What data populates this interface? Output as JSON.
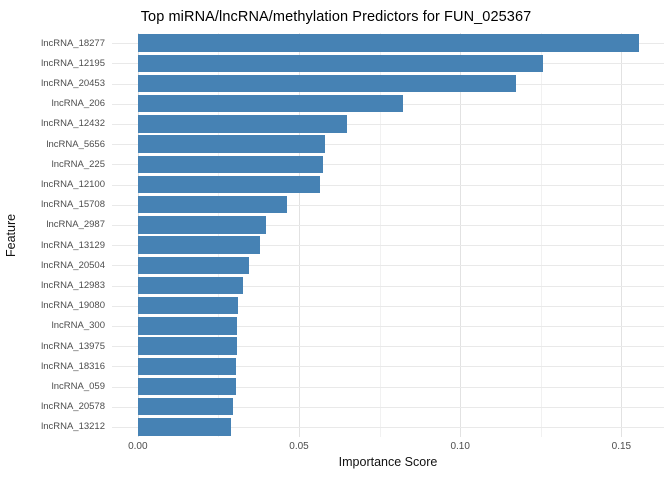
{
  "chart_data": {
    "type": "bar",
    "orientation": "horizontal",
    "title": "Top miRNA/lncRNA/methylation Predictors for FUN_025367",
    "xlabel": "Importance Score",
    "ylabel": "Feature",
    "categories": [
      "lncRNA_18277",
      "lncRNA_12195",
      "lncRNA_20453",
      "lncRNA_206",
      "lncRNA_12432",
      "lncRNA_5656",
      "lncRNA_225",
      "lncRNA_12100",
      "lncRNA_15708",
      "lncRNA_2987",
      "lncRNA_13129",
      "lncRNA_20504",
      "lncRNA_12983",
      "lncRNA_19080",
      "lncRNA_300",
      "lncRNA_13975",
      "lncRNA_18316",
      "lncRNA_059",
      "lncRNA_20578",
      "lncRNA_13212"
    ],
    "values": [
      0.1555,
      0.1258,
      0.1172,
      0.0823,
      0.065,
      0.0582,
      0.0575,
      0.0566,
      0.0463,
      0.0398,
      0.038,
      0.0346,
      0.0326,
      0.031,
      0.0309,
      0.0308,
      0.0305,
      0.0304,
      0.0296,
      0.029
    ],
    "bar_color": "#4682B4",
    "xlim": [
      -0.008,
      0.1632
    ],
    "x_ticks": [
      {
        "value": 0.0,
        "label": "0.00"
      },
      {
        "value": 0.05,
        "label": "0.05"
      },
      {
        "value": 0.1,
        "label": "0.10"
      },
      {
        "value": 0.15,
        "label": "0.15"
      }
    ],
    "x_minor_ticks": [
      0.025,
      0.075,
      0.125
    ],
    "grid": true,
    "legend": false
  }
}
